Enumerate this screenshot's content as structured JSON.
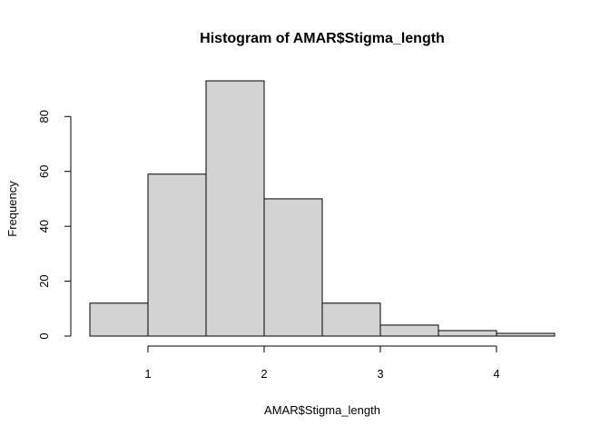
{
  "chart_data": {
    "type": "bar",
    "title": "Histogram of AMAR$Stigma_length",
    "xlabel": "AMAR$Stigma_length",
    "ylabel": "Frequency",
    "bins": [
      {
        "start": 0.5,
        "end": 1.0,
        "count": 12
      },
      {
        "start": 1.0,
        "end": 1.5,
        "count": 59
      },
      {
        "start": 1.5,
        "end": 2.0,
        "count": 93
      },
      {
        "start": 2.0,
        "end": 2.5,
        "count": 50
      },
      {
        "start": 2.5,
        "end": 3.0,
        "count": 12
      },
      {
        "start": 3.0,
        "end": 3.5,
        "count": 4
      },
      {
        "start": 3.5,
        "end": 4.0,
        "count": 2
      },
      {
        "start": 4.0,
        "end": 4.5,
        "count": 1
      }
    ],
    "x_ticks": [
      "1",
      "2",
      "3",
      "4"
    ],
    "y_ticks": [
      "0",
      "20",
      "40",
      "60",
      "80"
    ],
    "xlim": [
      0.5,
      4.5
    ],
    "ylim": [
      0,
      93
    ],
    "grid": false,
    "legend": "none",
    "bar_color": "#d3d3d3",
    "edge_color": "#000000"
  }
}
